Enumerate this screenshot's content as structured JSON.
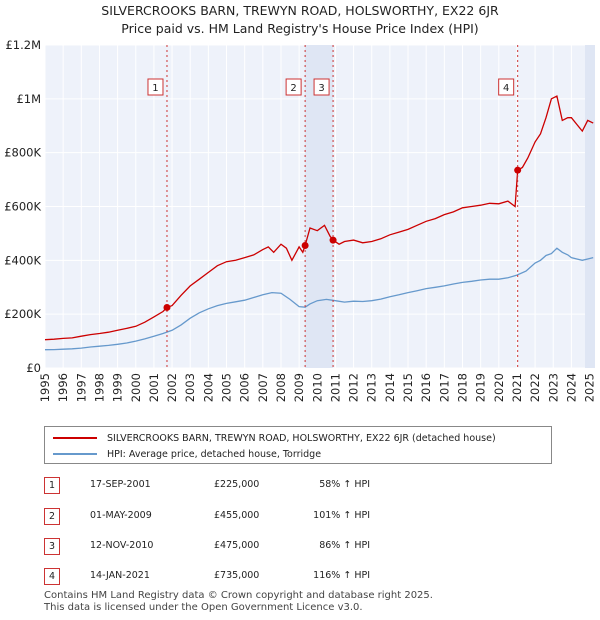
{
  "chart_data": {
    "type": "line",
    "title": "SILVERCROOKS BARN, TREWYN ROAD, HOLSWORTHY, EX22 6JR",
    "subtitle": "Price paid vs. HM Land Registry's House Price Index (HPI)",
    "xlabel": "",
    "ylabel": "",
    "xlim": [
      1995,
      2025.3
    ],
    "ylim": [
      0,
      1200000
    ],
    "x_ticks": [
      "1995",
      "1996",
      "1997",
      "1998",
      "1999",
      "2000",
      "2001",
      "2002",
      "2003",
      "2004",
      "2005",
      "2006",
      "2007",
      "2008",
      "2009",
      "2010",
      "2011",
      "2012",
      "2013",
      "2014",
      "2015",
      "2016",
      "2017",
      "2018",
      "2019",
      "2020",
      "2021",
      "2022",
      "2023",
      "2024",
      "2025"
    ],
    "y_ticks": [
      {
        "value": 0,
        "label": "£0"
      },
      {
        "value": 200000,
        "label": "£200K"
      },
      {
        "value": 400000,
        "label": "£400K"
      },
      {
        "value": 600000,
        "label": "£600K"
      },
      {
        "value": 800000,
        "label": "£800K"
      },
      {
        "value": 1000000,
        "label": "£1M"
      },
      {
        "value": 1200000,
        "label": "£1.2M"
      }
    ],
    "grid": true,
    "series": [
      {
        "name": "SILVERCROOKS BARN, TREWYN ROAD, HOLSWORTHY, EX22 6JR (detached house)",
        "color": "#cc0000",
        "x": [
          1995,
          1995.5,
          1996,
          1996.5,
          1997,
          1997.5,
          1998,
          1998.5,
          1999,
          1999.5,
          2000,
          2000.5,
          2001,
          2001.5,
          2001.72,
          2002,
          2002.5,
          2003,
          2003.5,
          2004,
          2004.5,
          2005,
          2005.5,
          2006,
          2006.5,
          2007,
          2007.3,
          2007.6,
          2008,
          2008.3,
          2008.6,
          2009,
          2009.2,
          2009.33,
          2009.6,
          2010,
          2010.4,
          2010.7,
          2010.87,
          2011.2,
          2011.5,
          2012,
          2012.5,
          2013,
          2013.5,
          2014,
          2014.5,
          2015,
          2015.5,
          2016,
          2016.5,
          2017,
          2017.5,
          2018,
          2018.5,
          2019,
          2019.5,
          2020,
          2020.5,
          2020.9,
          2021.04,
          2021.3,
          2021.6,
          2022,
          2022.3,
          2022.6,
          2022.9,
          2023.2,
          2023.5,
          2023.8,
          2024,
          2024.3,
          2024.6,
          2024.9,
          2025.2
        ],
        "values": [
          105000,
          107000,
          110000,
          112000,
          118000,
          124000,
          128000,
          133000,
          140000,
          147000,
          155000,
          170000,
          190000,
          210000,
          225000,
          232000,
          270000,
          305000,
          330000,
          355000,
          380000,
          395000,
          400000,
          410000,
          420000,
          440000,
          450000,
          430000,
          460000,
          445000,
          400000,
          450000,
          430000,
          455000,
          520000,
          510000,
          530000,
          490000,
          475000,
          460000,
          470000,
          475000,
          465000,
          470000,
          480000,
          495000,
          505000,
          515000,
          530000,
          545000,
          555000,
          570000,
          580000,
          595000,
          600000,
          605000,
          612000,
          610000,
          620000,
          600000,
          735000,
          745000,
          780000,
          840000,
          870000,
          930000,
          1000000,
          1010000,
          920000,
          930000,
          930000,
          905000,
          880000,
          920000,
          910000
        ]
      },
      {
        "name": "HPI: Average price, detached house, Torridge",
        "color": "#6699cc",
        "x": [
          1995,
          1995.5,
          1996,
          1996.5,
          1997,
          1997.5,
          1998,
          1998.5,
          1999,
          1999.5,
          2000,
          2000.5,
          2001,
          2001.5,
          2002,
          2002.5,
          2003,
          2003.5,
          2004,
          2004.5,
          2005,
          2005.5,
          2006,
          2006.5,
          2007,
          2007.5,
          2008,
          2008.5,
          2009,
          2009.33,
          2009.6,
          2010,
          2010.5,
          2011,
          2011.5,
          2012,
          2012.5,
          2013,
          2013.5,
          2014,
          2014.5,
          2015,
          2015.5,
          2016,
          2016.5,
          2017,
          2017.5,
          2018,
          2018.5,
          2019,
          2019.5,
          2020,
          2020.5,
          2021,
          2021.5,
          2022,
          2022.3,
          2022.6,
          2022.9,
          2023.2,
          2023.5,
          2023.8,
          2024,
          2024.3,
          2024.6,
          2024.9,
          2025.2
        ],
        "values": [
          68000,
          68500,
          70000,
          71500,
          74000,
          78000,
          81000,
          84000,
          88000,
          93000,
          100000,
          108000,
          118000,
          128000,
          140000,
          160000,
          185000,
          205000,
          220000,
          232000,
          240000,
          246000,
          252000,
          262000,
          272000,
          280000,
          278000,
          255000,
          228000,
          226000,
          238000,
          250000,
          255000,
          250000,
          245000,
          248000,
          247000,
          250000,
          256000,
          265000,
          272000,
          280000,
          287000,
          295000,
          300000,
          305000,
          312000,
          318000,
          322000,
          327000,
          330000,
          330000,
          335000,
          345000,
          360000,
          390000,
          400000,
          418000,
          425000,
          445000,
          430000,
          420000,
          410000,
          405000,
          400000,
          405000,
          410000
        ]
      }
    ],
    "annotations": [
      {
        "label": "1",
        "x": 2001.72
      },
      {
        "label": "2",
        "x": 2009.33
      },
      {
        "label": "3",
        "x": 2010.87
      },
      {
        "label": "4",
        "x": 2021.04
      }
    ]
  },
  "sales": [
    {
      "num": "1",
      "date": "17-SEP-2001",
      "price": "£225,000",
      "hpi": "58% ↑ HPI"
    },
    {
      "num": "2",
      "date": "01-MAY-2009",
      "price": "£455,000",
      "hpi": "101% ↑ HPI"
    },
    {
      "num": "3",
      "date": "12-NOV-2010",
      "price": "£475,000",
      "hpi": "86% ↑ HPI"
    },
    {
      "num": "4",
      "date": "14-JAN-2021",
      "price": "£735,000",
      "hpi": "116% ↑ HPI"
    }
  ],
  "footer": {
    "line1": "Contains HM Land Registry data © Crown copyright and database right 2025.",
    "line2": "This data is licensed under the Open Government Licence v3.0."
  }
}
